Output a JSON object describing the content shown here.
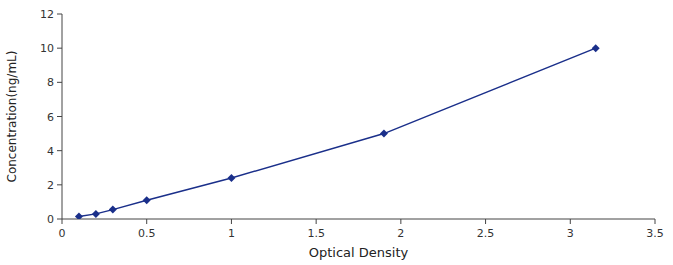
{
  "chart_data": {
    "type": "line",
    "x": [
      0.1,
      0.2,
      0.3,
      0.5,
      1.0,
      1.9,
      3.15
    ],
    "values": [
      0.15,
      0.3,
      0.55,
      1.1,
      2.4,
      5.0,
      10.0
    ],
    "color": "#1a2f8a",
    "marker": "diamond",
    "xlabel": "Optical Density",
    "ylabel": "Concentration(ng/mL)",
    "xlim": [
      0,
      3.5
    ],
    "ylim": [
      0,
      12
    ],
    "xticks": [
      0,
      0.5,
      1,
      1.5,
      2,
      2.5,
      3,
      3.5
    ],
    "yticks": [
      0,
      2,
      4,
      6,
      8,
      10,
      12
    ]
  }
}
